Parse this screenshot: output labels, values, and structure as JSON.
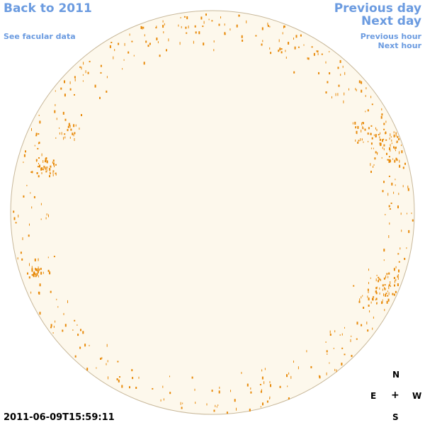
{
  "nav": {
    "back": "Back to 2011",
    "facular": "See facular data",
    "previous_day": "Previous day",
    "next_day": "Next day",
    "previous_hour": "Previous hour",
    "next_hour": "Next hour"
  },
  "timestamp": "2011-06-09T15:59:11",
  "compass": {
    "n": "N",
    "e": "E",
    "center": "+",
    "w": "W",
    "s": "S"
  },
  "colors": {
    "disk_fill": "#fdf8ec",
    "disk_stroke": "#c8b89a",
    "facula": "#e88a0a",
    "link": "#6b9be0"
  }
}
